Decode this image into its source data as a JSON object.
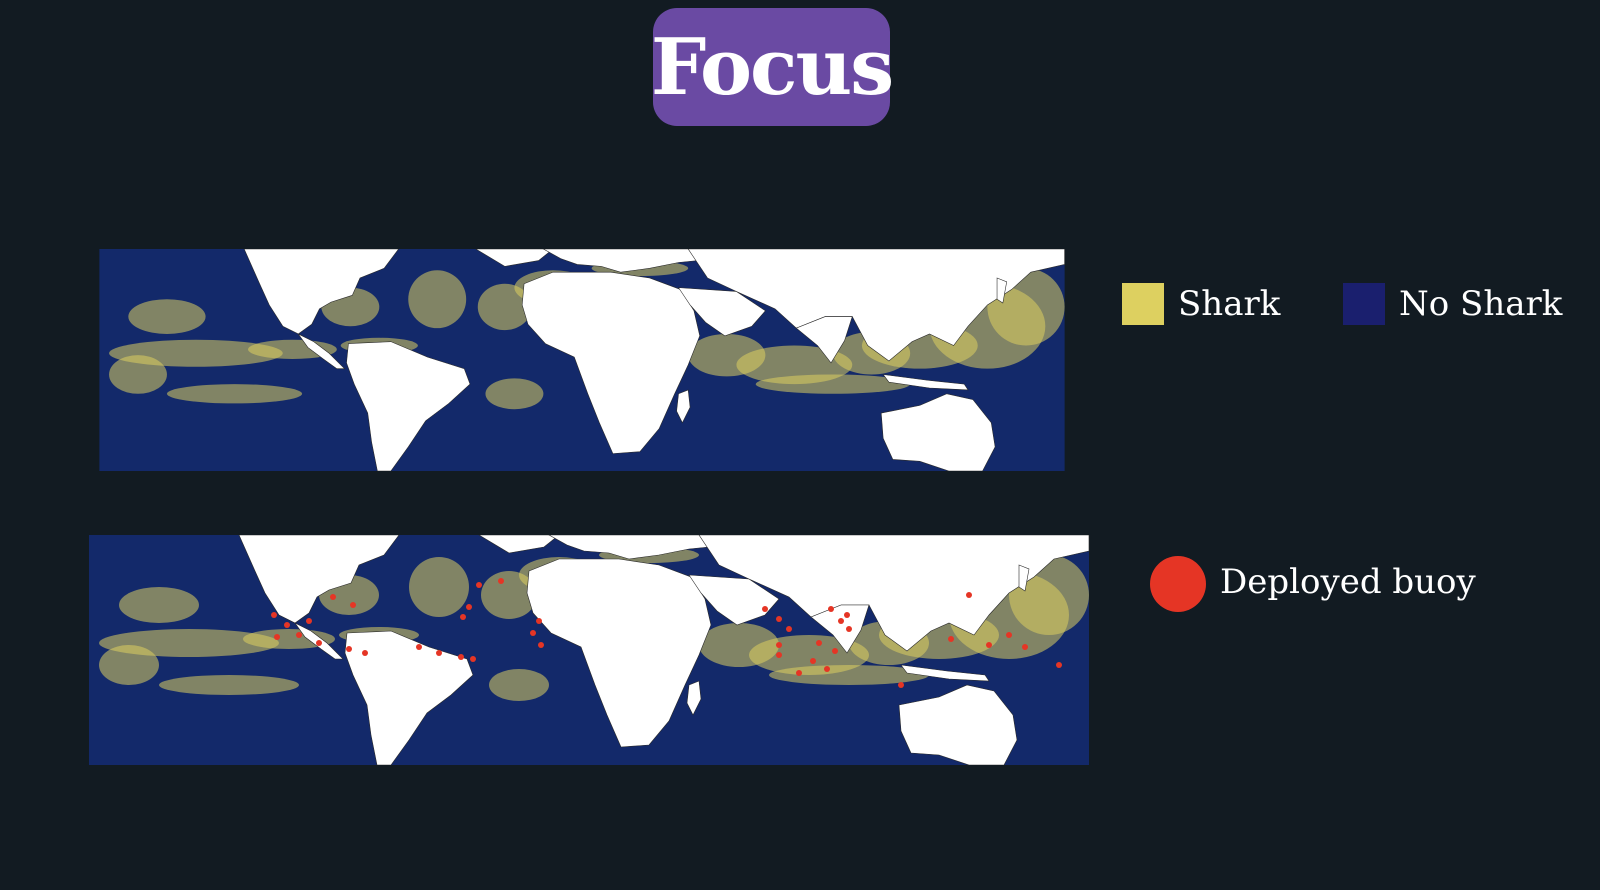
{
  "title": "Focus",
  "colors": {
    "background": "#121b22",
    "title_pill": "#6a4aa3",
    "shark": "#ddd060",
    "no_shark": "#1a1f6e",
    "buoy": "#e53525",
    "ocean": "#13296a",
    "land": "#ffffff"
  },
  "legend": {
    "shark": "Shark",
    "no_shark": "No Shark",
    "buoy": "Deployed buoy"
  },
  "maps": [
    {
      "name": "shark-probability-map",
      "shows_buoys": false
    },
    {
      "name": "shark-map-with-buoys",
      "shows_buoys": true
    }
  ]
}
